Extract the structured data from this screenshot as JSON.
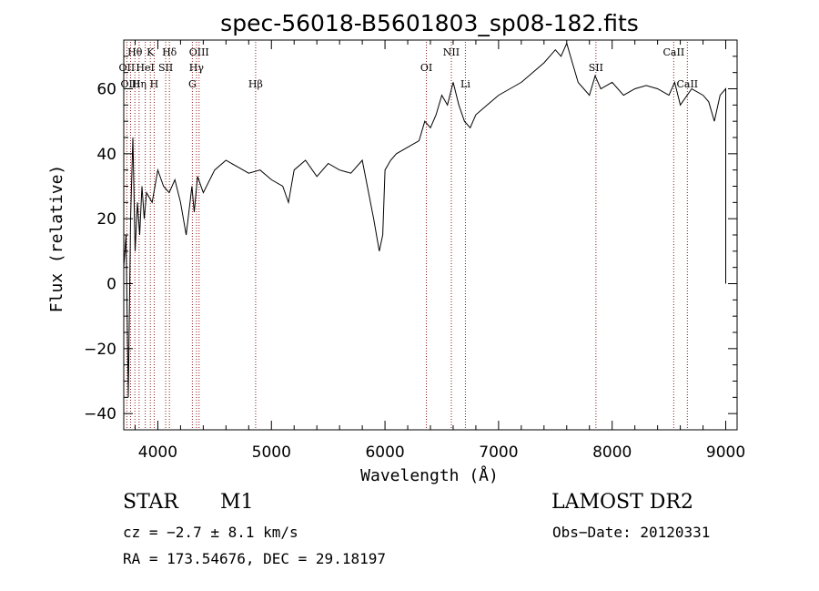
{
  "chart_data": {
    "type": "line",
    "title": "spec-56018-B5601803_sp08-182.fits",
    "xlabel": "Wavelength (Å)",
    "ylabel": "Flux (relative)",
    "xlim": [
      3700,
      9100
    ],
    "ylim": [
      -45,
      75
    ],
    "xticks": [
      4000,
      5000,
      6000,
      7000,
      8000,
      9000
    ],
    "yticks": [
      -40,
      -20,
      0,
      20,
      40,
      60
    ],
    "series": [
      {
        "name": "flux",
        "x": [
          3700,
          3720,
          3740,
          3760,
          3780,
          3800,
          3820,
          3840,
          3860,
          3880,
          3900,
          3950,
          4000,
          4050,
          4100,
          4150,
          4200,
          4250,
          4300,
          4320,
          4350,
          4400,
          4500,
          4600,
          4700,
          4800,
          4900,
          5000,
          5100,
          5150,
          5200,
          5300,
          5400,
          5500,
          5600,
          5700,
          5800,
          5900,
          5950,
          5980,
          6000,
          6050,
          6100,
          6200,
          6300,
          6350,
          6400,
          6450,
          6500,
          6550,
          6600,
          6650,
          6700,
          6750,
          6800,
          6900,
          7000,
          7100,
          7200,
          7300,
          7400,
          7500,
          7550,
          7600,
          7650,
          7700,
          7750,
          7800,
          7850,
          7900,
          8000,
          8100,
          8200,
          8300,
          8400,
          8500,
          8550,
          8600,
          8700,
          8800,
          8850,
          8900,
          8950,
          9000,
          9000
        ],
        "y": [
          5,
          15,
          -35,
          20,
          45,
          10,
          25,
          15,
          30,
          20,
          28,
          25,
          35,
          30,
          28,
          32,
          25,
          15,
          30,
          22,
          33,
          28,
          35,
          38,
          36,
          34,
          35,
          32,
          30,
          25,
          35,
          38,
          33,
          37,
          35,
          34,
          38,
          20,
          10,
          15,
          35,
          38,
          40,
          42,
          44,
          50,
          48,
          52,
          58,
          55,
          62,
          55,
          50,
          48,
          52,
          55,
          58,
          60,
          62,
          65,
          68,
          72,
          70,
          74,
          68,
          62,
          60,
          58,
          64,
          60,
          62,
          58,
          60,
          61,
          60,
          58,
          62,
          55,
          60,
          58,
          56,
          50,
          58,
          60,
          0
        ]
      }
    ],
    "spectral_lines": [
      {
        "label": "Hθ",
        "x": 3798,
        "row": 1
      },
      {
        "label": "K",
        "x": 3934,
        "row": 1
      },
      {
        "label": "Hδ",
        "x": 4102,
        "row": 1
      },
      {
        "label": "OIII",
        "x": 4363,
        "row": 1
      },
      {
        "label": "NII",
        "x": 6584,
        "row": 1
      },
      {
        "label": "CaII",
        "x": 8542,
        "row": 1
      },
      {
        "label": "OII",
        "x": 3727,
        "row": 2
      },
      {
        "label": "HeI",
        "x": 3889,
        "row": 2
      },
      {
        "label": "SII",
        "x": 4069,
        "row": 2
      },
      {
        "label": "Hγ",
        "x": 4340,
        "row": 2
      },
      {
        "label": "OI",
        "x": 6364,
        "row": 2
      },
      {
        "label": "SII",
        "x": 7857,
        "row": 2
      },
      {
        "label": "OIII",
        "x": 3760,
        "row": 3
      },
      {
        "label": "Hη",
        "x": 3835,
        "row": 3
      },
      {
        "label": "H",
        "x": 3968,
        "row": 3
      },
      {
        "label": "G",
        "x": 4304,
        "row": 3
      },
      {
        "label": "Hβ",
        "x": 4861,
        "row": 3
      },
      {
        "label": "Li",
        "x": 6708,
        "row": 3
      },
      {
        "label": "CaII",
        "x": 8662,
        "row": 3
      }
    ]
  },
  "info": {
    "class_label": "STAR",
    "subclass_label": "M1",
    "survey": "LAMOST DR2",
    "cz": "cz = −2.7 ± 8.1 km/s",
    "obs_date": "Obs−Date: 20120331",
    "coords": "RA = 173.54676, DEC =  29.18197"
  }
}
